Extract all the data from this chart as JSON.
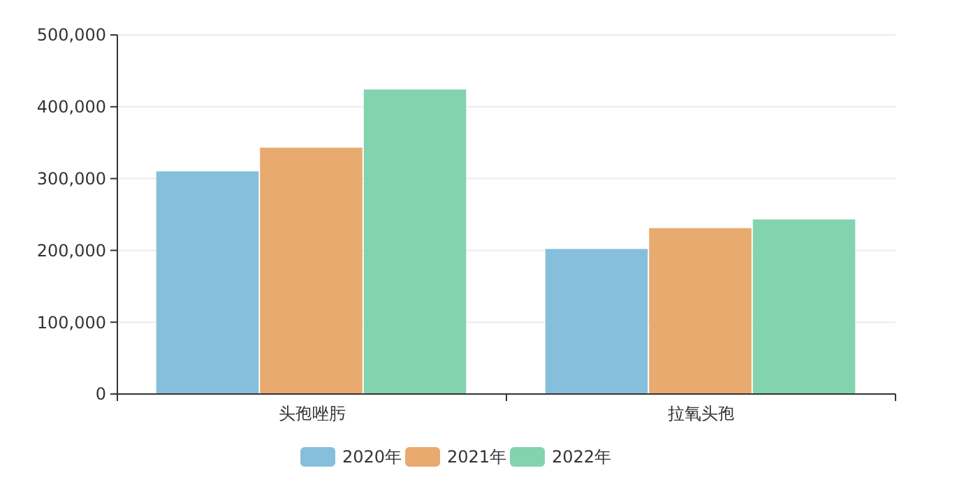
{
  "chart_data": {
    "type": "bar",
    "categories": [
      "头孢唑肟",
      "拉氧头孢"
    ],
    "series": [
      {
        "name": "2020年",
        "color": "#86bfdb",
        "values": [
          310000,
          202000
        ]
      },
      {
        "name": "2021年",
        "color": "#e8aa6e",
        "values": [
          343000,
          231000
        ]
      },
      {
        "name": "2022年",
        "color": "#82d3ae",
        "values": [
          424000,
          243000
        ]
      }
    ],
    "ylim": [
      0,
      500000
    ],
    "yticks": [
      {
        "value": 0,
        "label": "0"
      },
      {
        "value": 100000,
        "label": "100,000"
      },
      {
        "value": 200000,
        "label": "200,000"
      },
      {
        "value": 300000,
        "label": "300,000"
      },
      {
        "value": 400000,
        "label": "400,000"
      },
      {
        "value": 500000,
        "label": "500,000"
      }
    ],
    "grid": "y",
    "legend": "bottom"
  }
}
